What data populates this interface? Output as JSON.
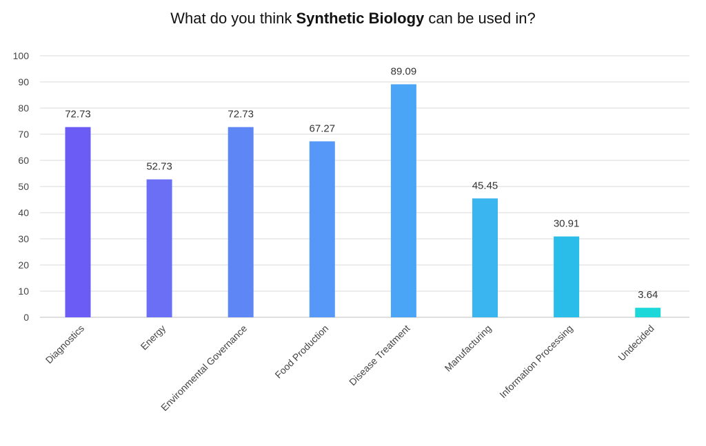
{
  "chart_data": {
    "type": "bar",
    "title_parts": [
      "What do you think ",
      "Synthetic Biology",
      " can be used in?"
    ],
    "categories": [
      "Diagnostics",
      "Energy",
      "Environmental Governance",
      "Food Production",
      "Disease Treatment",
      "Manufacturing",
      "Information Processing",
      "Undecided"
    ],
    "values": [
      72.73,
      52.73,
      72.73,
      67.27,
      89.09,
      45.45,
      30.91,
      3.64
    ],
    "value_labels": [
      "72.73",
      "52.73",
      "72.73",
      "67.27",
      "89.09",
      "45.45",
      "30.91",
      "3.64"
    ],
    "y_ticks": [
      "0",
      "10",
      "20",
      "30",
      "40",
      "50",
      "60",
      "70",
      "80",
      "90",
      "100"
    ],
    "ylim": [
      0,
      100
    ],
    "grid": true,
    "bar_colors": [
      "#6a5cf5",
      "#6a6ff5",
      "#5f86f5",
      "#5598f7",
      "#4aa5f7",
      "#3bb5f0",
      "#2bbde9",
      "#1dd8d8"
    ]
  }
}
